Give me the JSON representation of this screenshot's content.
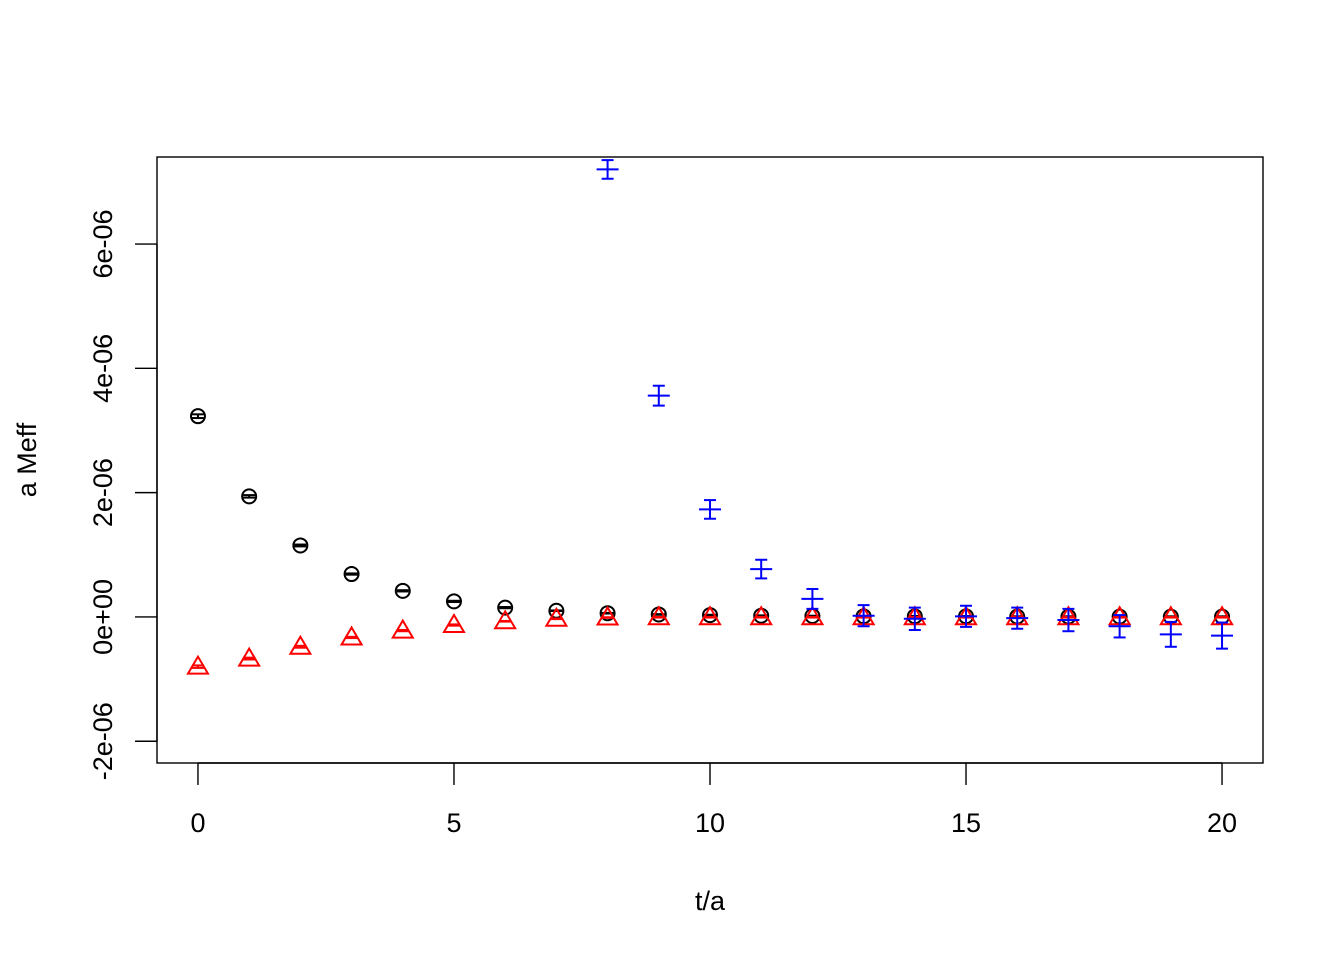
{
  "chart_data": {
    "type": "scatter",
    "title": "",
    "xlabel": "t/a",
    "ylabel": "a Meff",
    "xlim": [
      -0.8,
      20.8
    ],
    "ylim": [
      -2.35e-06,
      7.4e-06
    ],
    "x_ticks": [
      0,
      5,
      10,
      15,
      20
    ],
    "x_tick_labels": [
      "0",
      "5",
      "10",
      "15",
      "20"
    ],
    "y_ticks": [
      -2e-06,
      0,
      2e-06,
      4e-06,
      6e-06
    ],
    "y_tick_labels": [
      "-2e-06",
      "0e+00",
      "2e-06",
      "4e-06",
      "6e-06"
    ],
    "grid": false,
    "series": [
      {
        "marker": "circle",
        "color": "#000000",
        "x": [
          0,
          1,
          2,
          3,
          4,
          5,
          6,
          7,
          8,
          9,
          10,
          11,
          12,
          13,
          14,
          15,
          16,
          17,
          18,
          19,
          20
        ],
        "y": [
          3.23e-06,
          1.94e-06,
          1.15e-06,
          6.9e-07,
          4.2e-07,
          2.5e-07,
          1.5e-07,
          1e-07,
          6e-08,
          4e-08,
          3e-08,
          2e-08,
          1.5e-08,
          1e-08,
          1e-08,
          1e-08,
          5e-09,
          5e-09,
          5e-09,
          5e-09,
          5e-09
        ],
        "err": [
          3e-08,
          2e-08,
          1.5e-08,
          1e-08,
          1e-08,
          1e-08,
          1e-08,
          5e-09,
          5e-09,
          5e-09,
          5e-09,
          5e-09,
          5e-09,
          5e-09,
          5e-09,
          5e-09,
          5e-09,
          5e-09,
          5e-09,
          5e-09,
          5e-09
        ]
      },
      {
        "marker": "triangle",
        "color": "#ff0000",
        "x": [
          0,
          1,
          2,
          3,
          4,
          5,
          6,
          7,
          8,
          9,
          10,
          11,
          12,
          13,
          14,
          15,
          16,
          17,
          18,
          19,
          20
        ],
        "y": [
          -8e-07,
          -6.7e-07,
          -4.8e-07,
          -3.3e-07,
          -2.2e-07,
          -1.3e-07,
          -7e-08,
          -3e-08,
          -1e-08,
          -5e-09,
          -5e-09,
          -5e-09,
          -5e-09,
          -5e-09,
          -5e-09,
          -5e-09,
          -5e-09,
          -5e-09,
          -5e-09,
          -5e-09,
          -5e-09
        ],
        "err": [
          2e-08,
          1.5e-08,
          1.5e-08,
          1e-08,
          1e-08,
          1e-08,
          5e-09,
          5e-09,
          5e-09,
          5e-09,
          5e-09,
          5e-09,
          5e-09,
          5e-09,
          5e-09,
          5e-09,
          5e-09,
          5e-09,
          5e-09,
          5e-09,
          5e-09
        ]
      },
      {
        "marker": "plus",
        "color": "#0000ff",
        "x": [
          8,
          9,
          10,
          11,
          12,
          13,
          14,
          15,
          16,
          17,
          18,
          19,
          20
        ],
        "y": [
          7.2e-06,
          3.56e-06,
          1.73e-06,
          7.7e-07,
          2.9e-07,
          2e-08,
          -3e-08,
          1e-08,
          -2e-08,
          -5e-08,
          -1.5e-07,
          -2.8e-07,
          -3e-07
        ],
        "err": [
          1.5e-07,
          1.6e-07,
          1.5e-07,
          1.5e-07,
          1.6e-07,
          1.7e-07,
          1.8e-07,
          1.7e-07,
          1.7e-07,
          1.8e-07,
          1.8e-07,
          2e-07,
          2.1e-07
        ]
      }
    ]
  }
}
